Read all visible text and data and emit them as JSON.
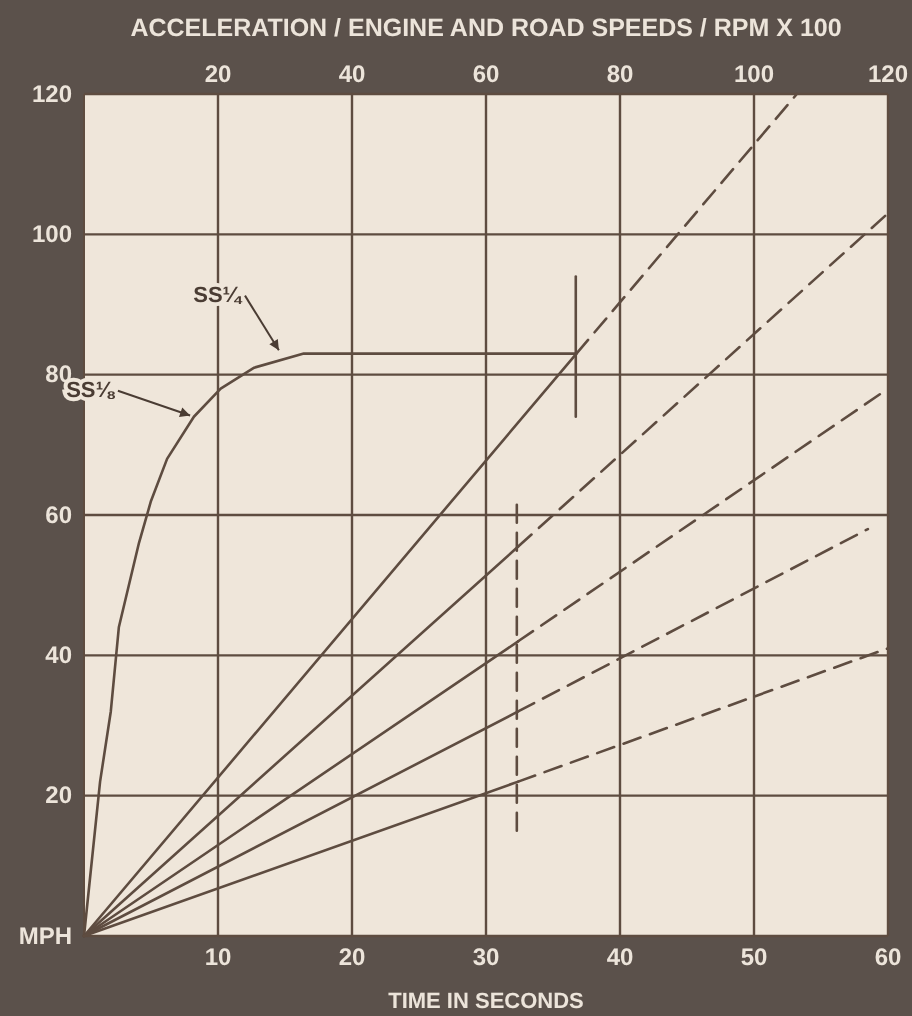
{
  "chart_data": {
    "type": "line",
    "title": "ACCELERATION / ENGINE AND ROAD SPEEDS / RPM X 100",
    "xlabel": "TIME IN SECONDS",
    "xlim": [
      0,
      60
    ],
    "xticks": [
      10,
      20,
      30,
      40,
      50,
      60
    ],
    "x2lim": [
      0,
      120
    ],
    "x2ticks": [
      20,
      40,
      60,
      80,
      100,
      120
    ],
    "ylim": [
      0,
      120
    ],
    "yticks": [
      {
        "value": 0,
        "label": "MPH"
      },
      20,
      40,
      60,
      80,
      100,
      120
    ],
    "grid": true,
    "marker": "none",
    "series": [
      {
        "color": "#5e4c40",
        "line_style": "solid",
        "x": [
          0,
          1.2,
          2.0,
          2.6,
          4.1,
          5.0,
          6.2,
          8.2,
          10.2,
          12.7,
          16.4,
          36.7
        ],
        "values": [
          0,
          22,
          32,
          44,
          56,
          62,
          68,
          74,
          78,
          81,
          83,
          83
        ]
      },
      {
        "color": "#5e4c40",
        "line_style": "solid",
        "x": [
          36.7,
          36.7
        ],
        "values": [
          74,
          94
        ]
      },
      {
        "color": "#5e4c40",
        "line_style": "dashed",
        "x": [
          32.3,
          32.3
        ],
        "values": [
          15,
          62
        ]
      },
      {
        "color": "#5e4c40",
        "line_style": "solid",
        "axis": "x2",
        "x": [
          0,
          73.5
        ],
        "values": [
          0,
          83
        ]
      },
      {
        "color": "#5e4c40",
        "line_style": "dashed",
        "axis": "x2",
        "x": [
          73.5,
          106.4
        ],
        "values": [
          83,
          120
        ]
      },
      {
        "color": "#5e4c40",
        "line_style": "solid",
        "axis": "x2",
        "x": [
          0,
          64.8
        ],
        "values": [
          0,
          55.5
        ]
      },
      {
        "color": "#5e4c40",
        "line_style": "dashed",
        "axis": "x2",
        "x": [
          64.8,
          120
        ],
        "values": [
          55.5,
          103
        ]
      },
      {
        "color": "#5e4c40",
        "line_style": "solid",
        "axis": "x2",
        "x": [
          0,
          64.8
        ],
        "values": [
          0,
          42
        ]
      },
      {
        "color": "#5e4c40",
        "line_style": "dashed",
        "axis": "x2",
        "x": [
          64.8,
          120
        ],
        "values": [
          42,
          78
        ]
      },
      {
        "color": "#5e4c40",
        "line_style": "solid",
        "axis": "x2",
        "x": [
          0,
          64.8
        ],
        "values": [
          0,
          32
        ]
      },
      {
        "color": "#5e4c40",
        "line_style": "dashed",
        "axis": "x2",
        "x": [
          64.8,
          117
        ],
        "values": [
          32,
          58
        ]
      },
      {
        "color": "#5e4c40",
        "line_style": "solid",
        "axis": "x2",
        "x": [
          0,
          64.8
        ],
        "values": [
          0,
          22
        ]
      },
      {
        "color": "#5e4c40",
        "line_style": "dashed",
        "axis": "x2",
        "x": [
          64.8,
          120
        ],
        "values": [
          22,
          41
        ]
      }
    ],
    "annotations": [
      {
        "text": "SS¼",
        "x": 14.7,
        "y": 83
      },
      {
        "text": "SS⅛",
        "x": 8.2,
        "y": 74
      }
    ]
  }
}
